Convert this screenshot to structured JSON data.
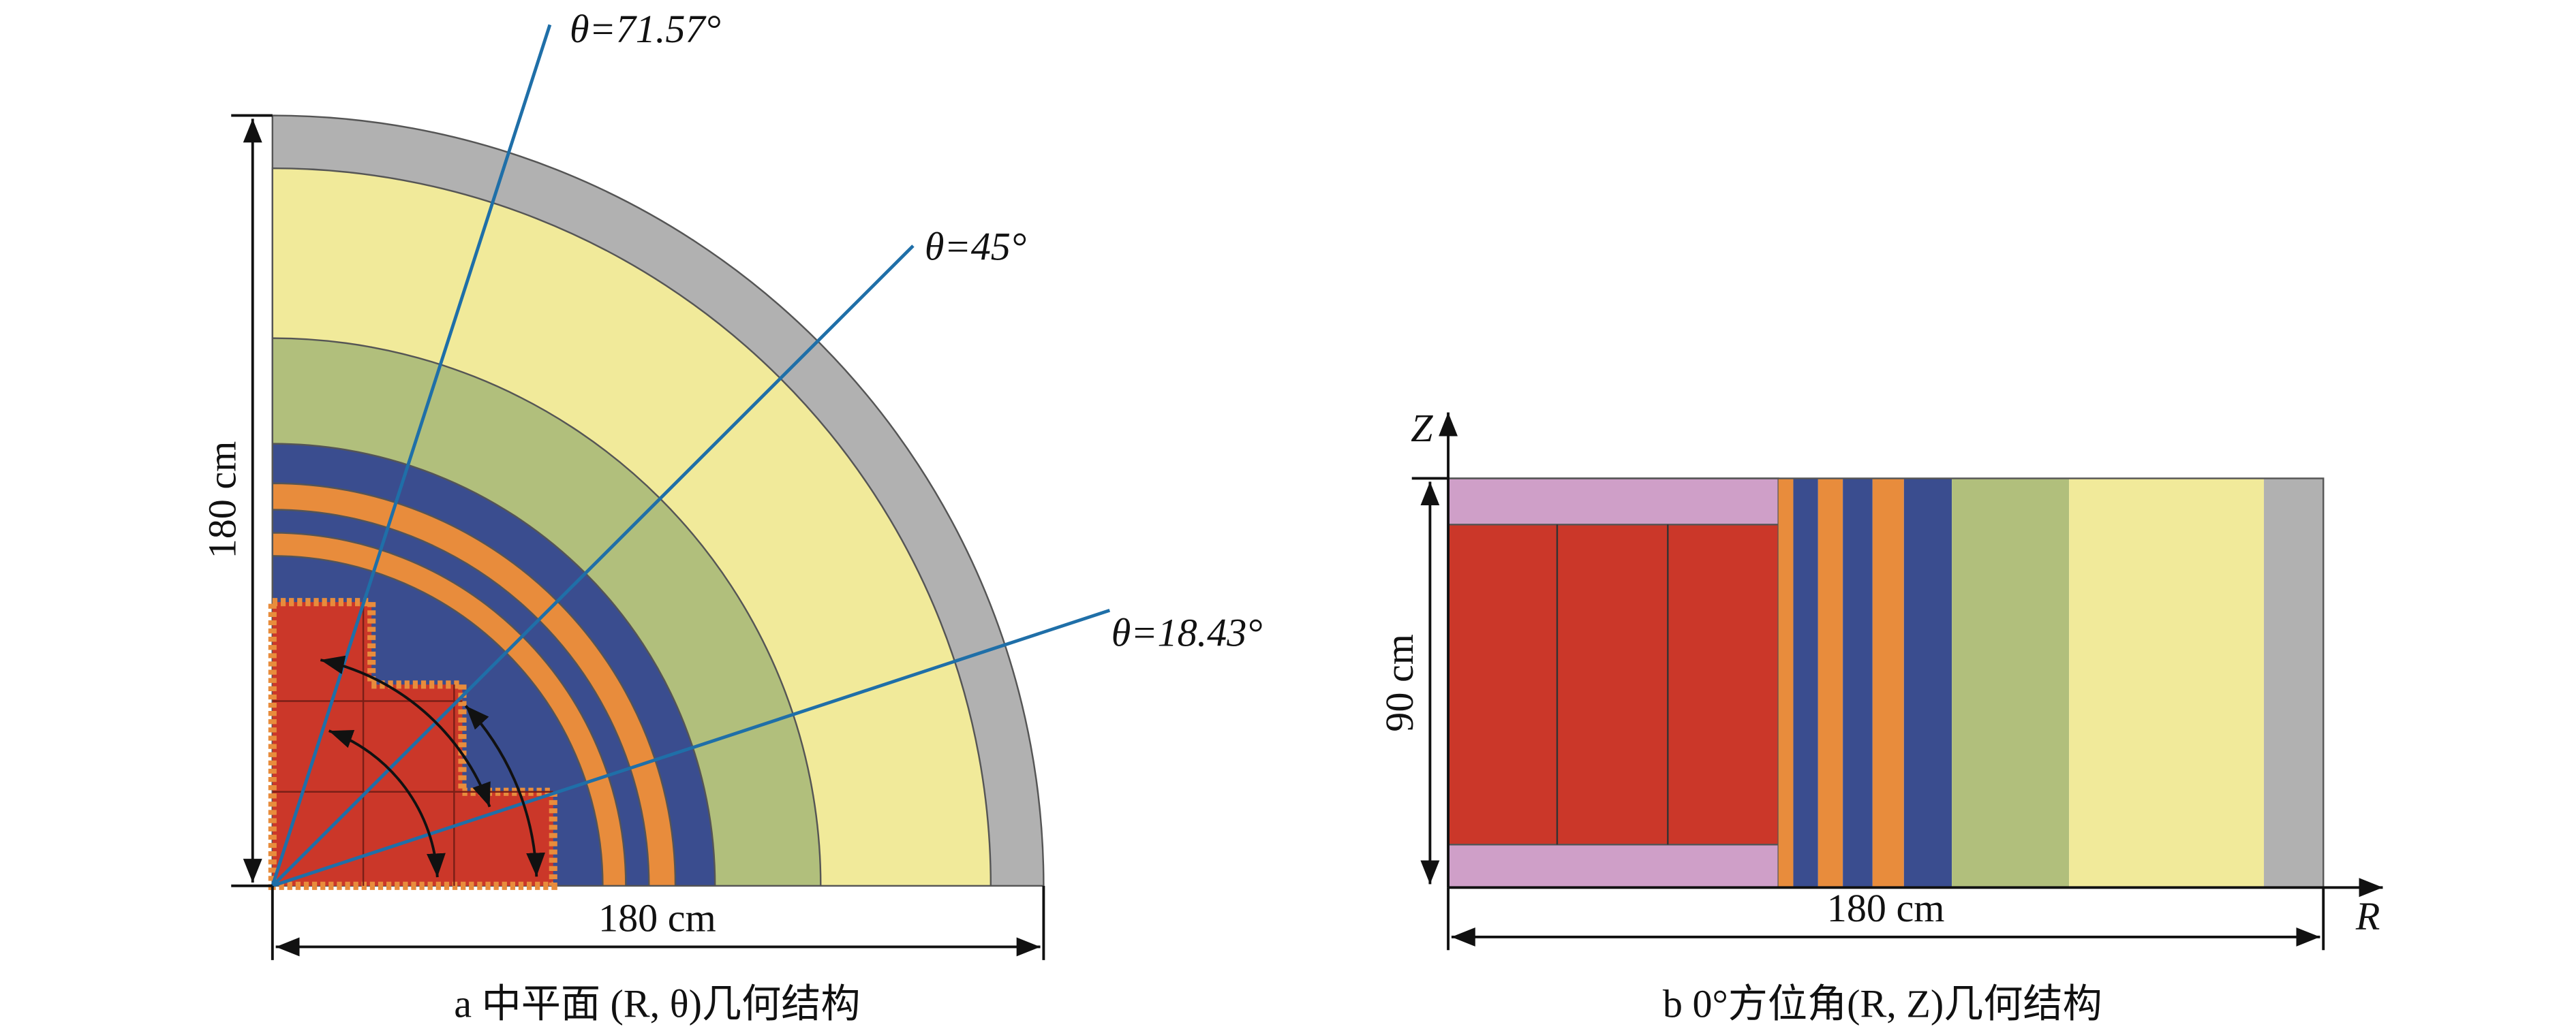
{
  "panel_a": {
    "angle_labels": [
      "θ=71.57°",
      "θ=45°",
      "θ=18.43°"
    ],
    "height_label": "180 cm",
    "width_label": "180 cm",
    "caption": "a  中平面 (R, θ)几何结构"
  },
  "panel_b": {
    "axis_z": "Z",
    "axis_r": "R",
    "height_label": "90 cm",
    "width_label": "180 cm",
    "caption": "b  0°方位角(R, Z)几何结构"
  }
}
